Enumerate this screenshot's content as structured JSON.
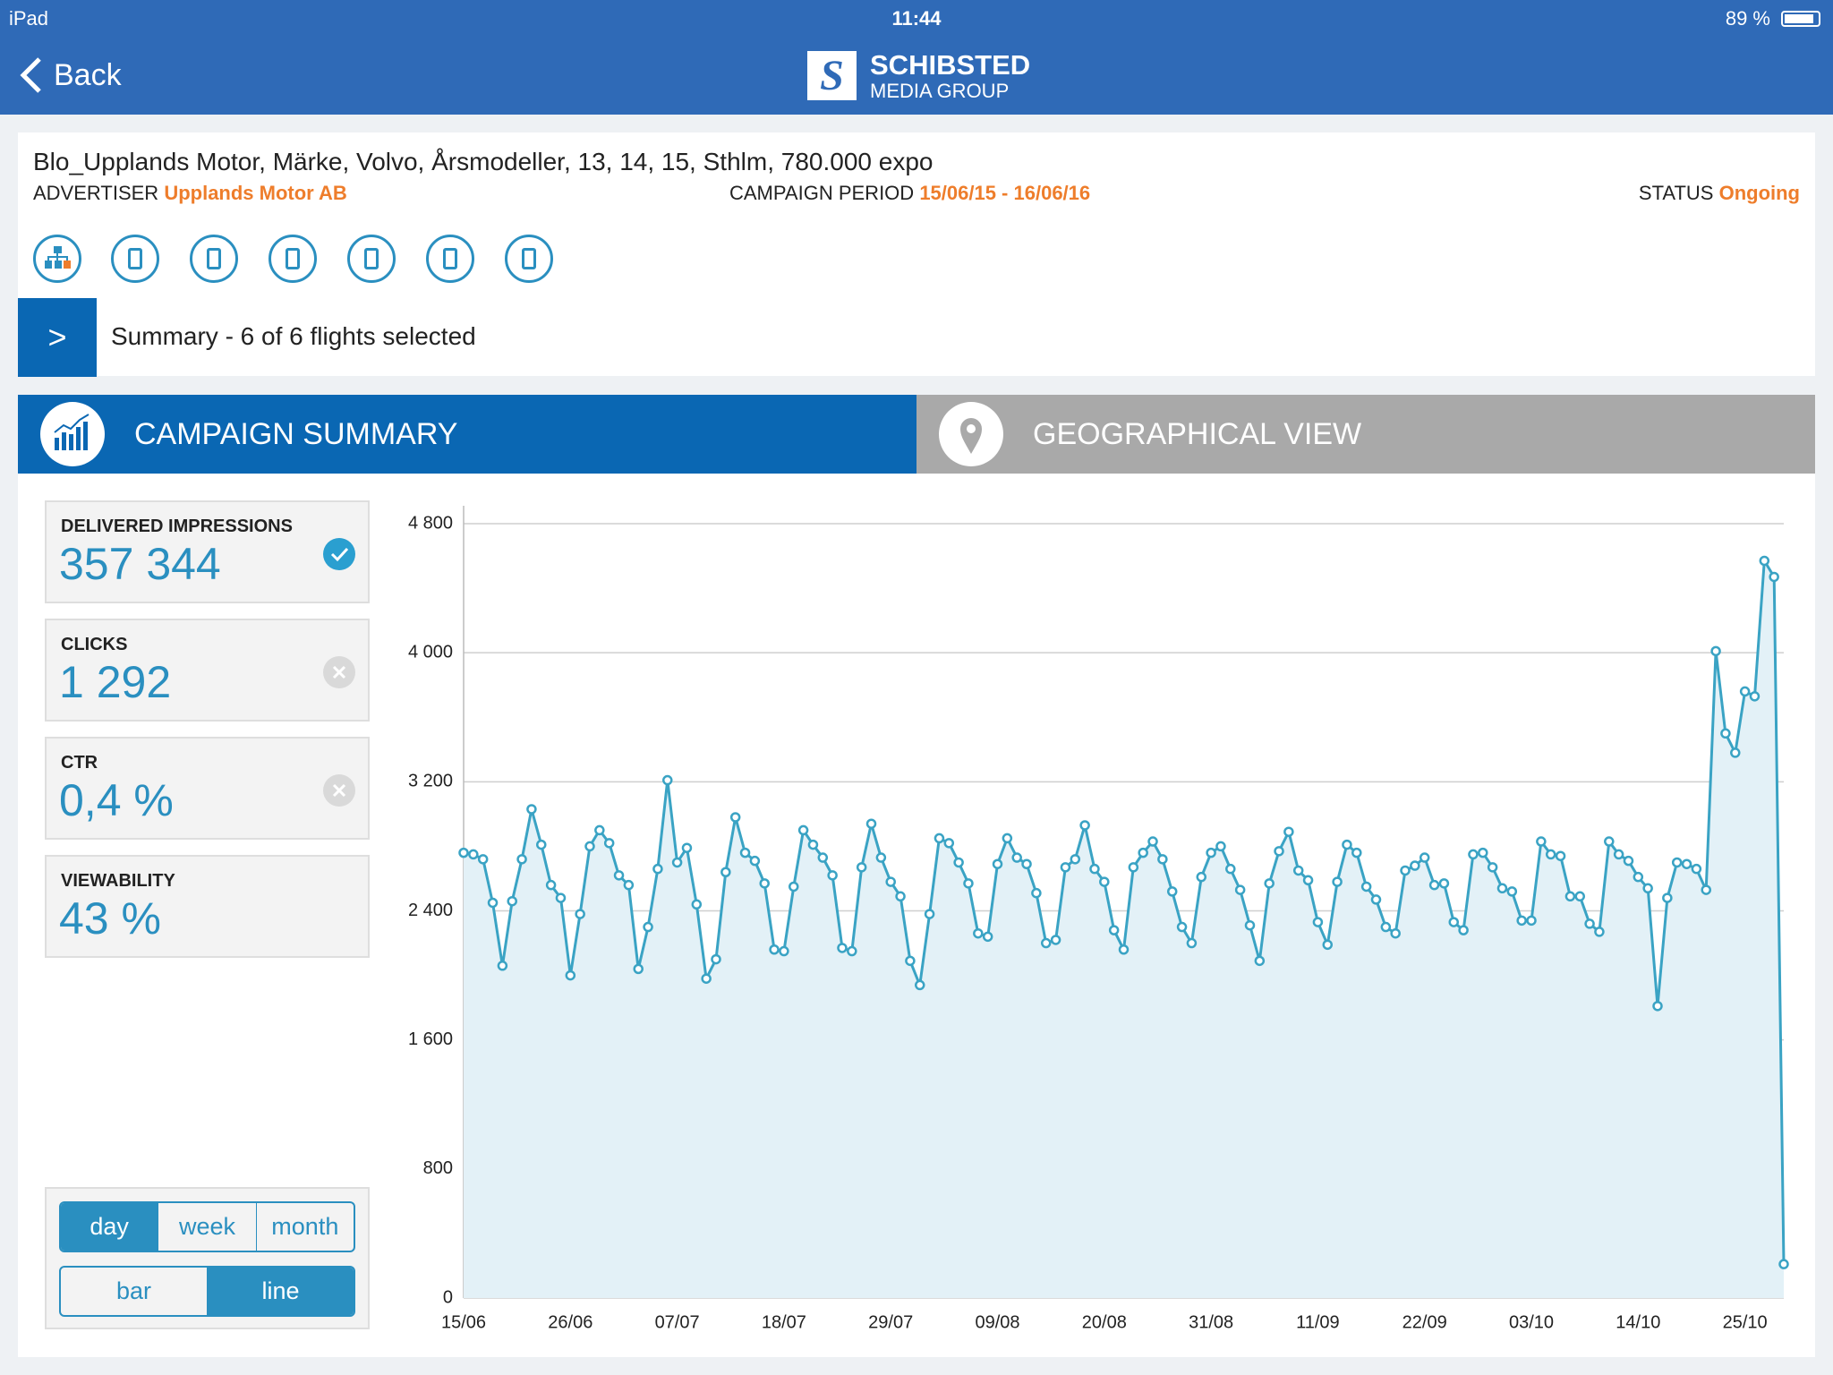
{
  "status_bar": {
    "device": "iPad",
    "time": "11:44",
    "battery": "89 %"
  },
  "nav": {
    "back": "Back",
    "brand": "SCHIBSTED",
    "brand_sub": "MEDIA GROUP"
  },
  "campaign": {
    "title": "Blo_Upplands Motor, Märke, Volvo, Årsmodeller, 13, 14, 15, Sthlm, 780.000 expo",
    "advertiser_label": "ADVERTISER",
    "advertiser": "Upplands Motor AB",
    "period_label": "CAMPAIGN PERIOD",
    "period": "15/06/15 - 16/06/16",
    "status_label": "STATUS",
    "status": "Ongoing"
  },
  "summary_bar": {
    "button": ">",
    "text": "Summary - 6 of 6 flights selected"
  },
  "tabs": [
    "CAMPAIGN SUMMARY",
    "GEOGRAPHICAL VIEW"
  ],
  "metrics": [
    {
      "label": "DELIVERED IMPRESSIONS",
      "value": "357 344"
    },
    {
      "label": "CLICKS",
      "value": "1 292"
    },
    {
      "label": "CTR",
      "value": "0,4 %"
    },
    {
      "label": "VIEWABILITY",
      "value": "43 %"
    }
  ],
  "period_toggle": [
    "day",
    "week",
    "month"
  ],
  "type_toggle": [
    "bar",
    "line"
  ],
  "chart_data": {
    "type": "line",
    "area": true,
    "grid": true,
    "color": "#3aa3c4",
    "area_color": "#e3f1f7",
    "categories": [
      "15/06",
      null,
      null,
      null,
      null,
      null,
      null,
      null,
      null,
      null,
      null,
      "26/06",
      null,
      null,
      null,
      null,
      null,
      null,
      null,
      null,
      null,
      null,
      "07/07",
      null,
      null,
      null,
      null,
      null,
      null,
      null,
      null,
      null,
      null,
      "18/07",
      null,
      null,
      null,
      null,
      null,
      null,
      null,
      null,
      null,
      null,
      "29/07",
      null,
      null,
      null,
      null,
      null,
      null,
      null,
      null,
      null,
      null,
      "09/08",
      null,
      null,
      null,
      null,
      null,
      null,
      null,
      null,
      null,
      null,
      "20/08",
      null,
      null,
      null,
      null,
      null,
      null,
      null,
      null,
      null,
      null,
      "31/08",
      null,
      null,
      null,
      null,
      null,
      null,
      null,
      null,
      null,
      null,
      "11/09",
      null,
      null,
      null,
      null,
      null,
      null,
      null,
      null,
      null,
      null,
      "22/09",
      null,
      null,
      null,
      null,
      null,
      null,
      null,
      null,
      null,
      null,
      "03/10",
      null,
      null,
      null,
      null,
      null,
      null,
      null,
      null,
      null,
      null,
      "14/10",
      null,
      null,
      null,
      null,
      null,
      null,
      null,
      null,
      null,
      null,
      "25/10",
      null,
      null,
      null,
      null
    ],
    "values": [
      2760,
      2750,
      2720,
      2450,
      2060,
      2460,
      2720,
      3030,
      2810,
      2560,
      2480,
      2000,
      2380,
      2800,
      2900,
      2820,
      2620,
      2560,
      2040,
      2300,
      2660,
      3210,
      2700,
      2790,
      2440,
      1980,
      2100,
      2640,
      2980,
      2760,
      2710,
      2570,
      2160,
      2150,
      2550,
      2900,
      2810,
      2730,
      2620,
      2170,
      2150,
      2670,
      2940,
      2730,
      2580,
      2490,
      2090,
      1940,
      2380,
      2850,
      2820,
      2700,
      2570,
      2260,
      2240,
      2690,
      2850,
      2730,
      2690,
      2510,
      2200,
      2220,
      2670,
      2720,
      2930,
      2660,
      2580,
      2280,
      2160,
      2670,
      2760,
      2830,
      2720,
      2520,
      2300,
      2200,
      2610,
      2760,
      2800,
      2660,
      2530,
      2310,
      2090,
      2570,
      2770,
      2890,
      2650,
      2590,
      2330,
      2190,
      2580,
      2810,
      2760,
      2550,
      2470,
      2300,
      2260,
      2650,
      2680,
      2730,
      2560,
      2570,
      2330,
      2280,
      2750,
      2760,
      2670,
      2540,
      2520,
      2340,
      2340,
      2830,
      2750,
      2740,
      2490,
      2490,
      2320,
      2270,
      2830,
      2750,
      2710,
      2610,
      2540,
      1810,
      2480,
      2700,
      2690,
      2660,
      2530,
      4010,
      3500,
      3380,
      3760,
      3730,
      4570,
      4470,
      210
    ],
    "ylim": [
      0,
      4800
    ],
    "yticks": [
      0,
      800,
      {
        "value": 1600,
        "label": "1 600"
      },
      {
        "value": 2400,
        "label": "2 400"
      },
      {
        "value": 3200,
        "label": "3 200"
      },
      {
        "value": 4000,
        "label": "4 000"
      },
      {
        "value": 4800,
        "label": "4 800"
      }
    ]
  }
}
